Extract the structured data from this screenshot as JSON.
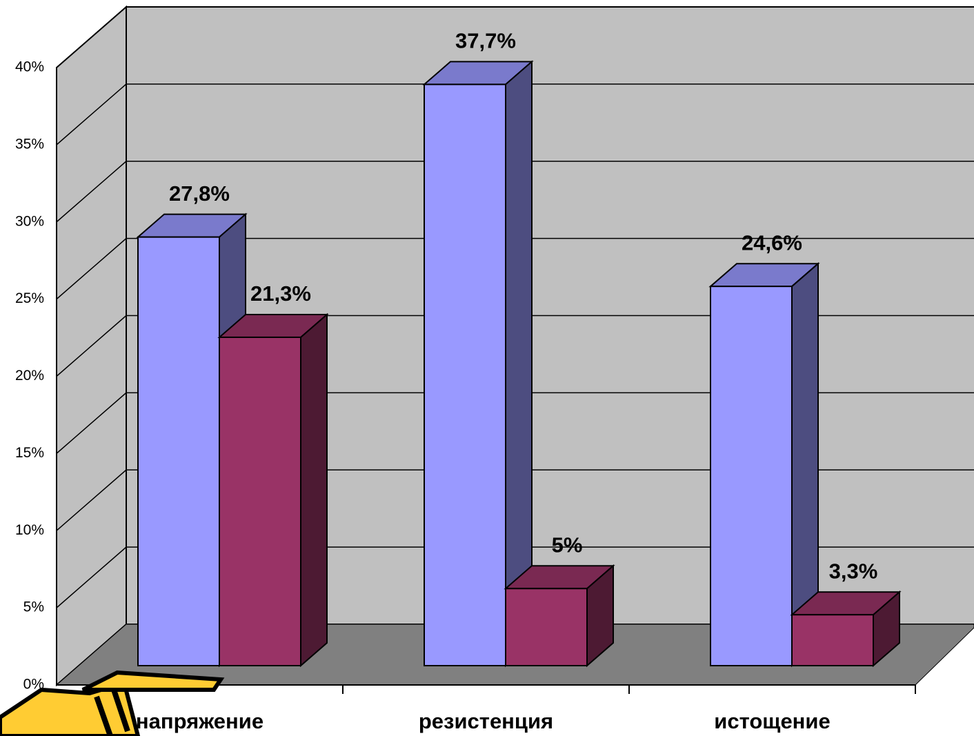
{
  "chart_data": {
    "type": "bar3d",
    "categories": [
      "напряжение",
      "резистенция",
      "истощение"
    ],
    "series": [
      {
        "color": "#9999ff",
        "values": [
          27.8,
          37.7,
          24.6
        ],
        "value_labels": [
          "27,8%",
          "37,7%",
          "24,6%"
        ]
      },
      {
        "color": "#993366",
        "values": [
          21.3,
          5,
          3.3
        ],
        "value_labels": [
          "21,3%",
          "5%",
          "3,3%"
        ]
      }
    ],
    "ylim": [
      0,
      40
    ],
    "yticks": [
      {
        "value": 0,
        "label": "0%"
      },
      {
        "value": 5,
        "label": "5%"
      },
      {
        "value": 10,
        "label": "10%"
      },
      {
        "value": 15,
        "label": "15%"
      },
      {
        "value": 20,
        "label": "20%"
      },
      {
        "value": 25,
        "label": "25%"
      },
      {
        "value": 30,
        "label": "30%"
      },
      {
        "value": 35,
        "label": "35%"
      },
      {
        "value": 40,
        "label": "40%"
      }
    ],
    "grid": true
  }
}
